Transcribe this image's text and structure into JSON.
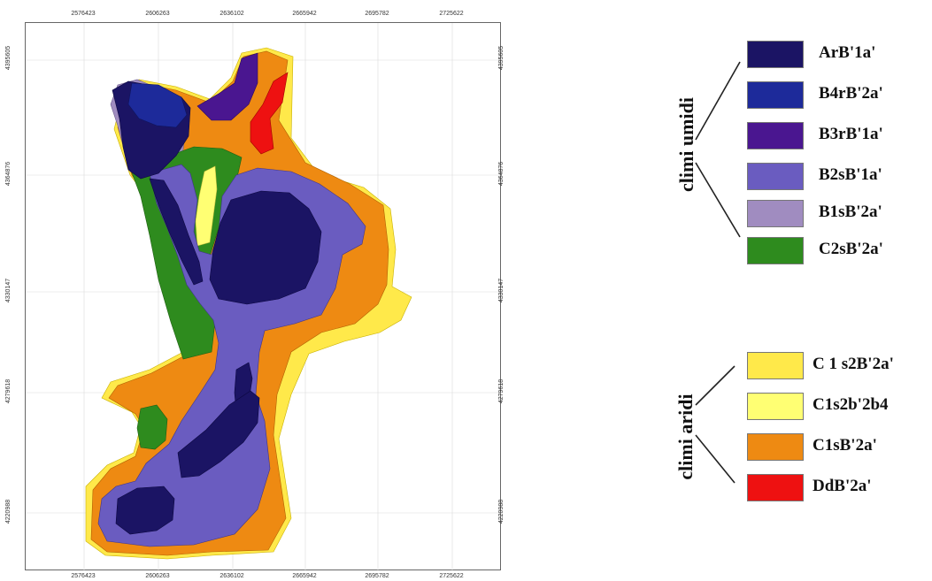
{
  "map": {
    "x_ticks": [
      "2576423",
      "2606263",
      "2636102",
      "2665942",
      "2695782",
      "2725622"
    ],
    "y_ticks": [
      "4395605",
      "4364876",
      "4330147",
      "4279618",
      "4220988"
    ]
  },
  "legend": {
    "groups": [
      {
        "title": "climi umidi",
        "items": [
          {
            "label": "ArB'1a'",
            "color": "#1b1464"
          },
          {
            "label": "B4rB'2a'",
            "color": "#1d2a9a"
          },
          {
            "label": "B3rB'1a'",
            "color": "#4a1690"
          },
          {
            "label": "B2sB'1a'",
            "color": "#6a5cc0"
          },
          {
            "label": "B1sB'2a'",
            "color": "#a08cc0"
          },
          {
            "label": "C2sB'2a'",
            "color": "#2e8b1e"
          }
        ]
      },
      {
        "title": "climi aridi",
        "items": [
          {
            "label": "C 1 s2B'2a'",
            "color": "#ffe94a"
          },
          {
            "label": "C1s2b'2b4",
            "color": "#ffff73"
          },
          {
            "label": "C1sB'2a'",
            "color": "#ee8a12"
          },
          {
            "label": "DdB'2a'",
            "color": "#ee1111"
          }
        ]
      }
    ]
  }
}
